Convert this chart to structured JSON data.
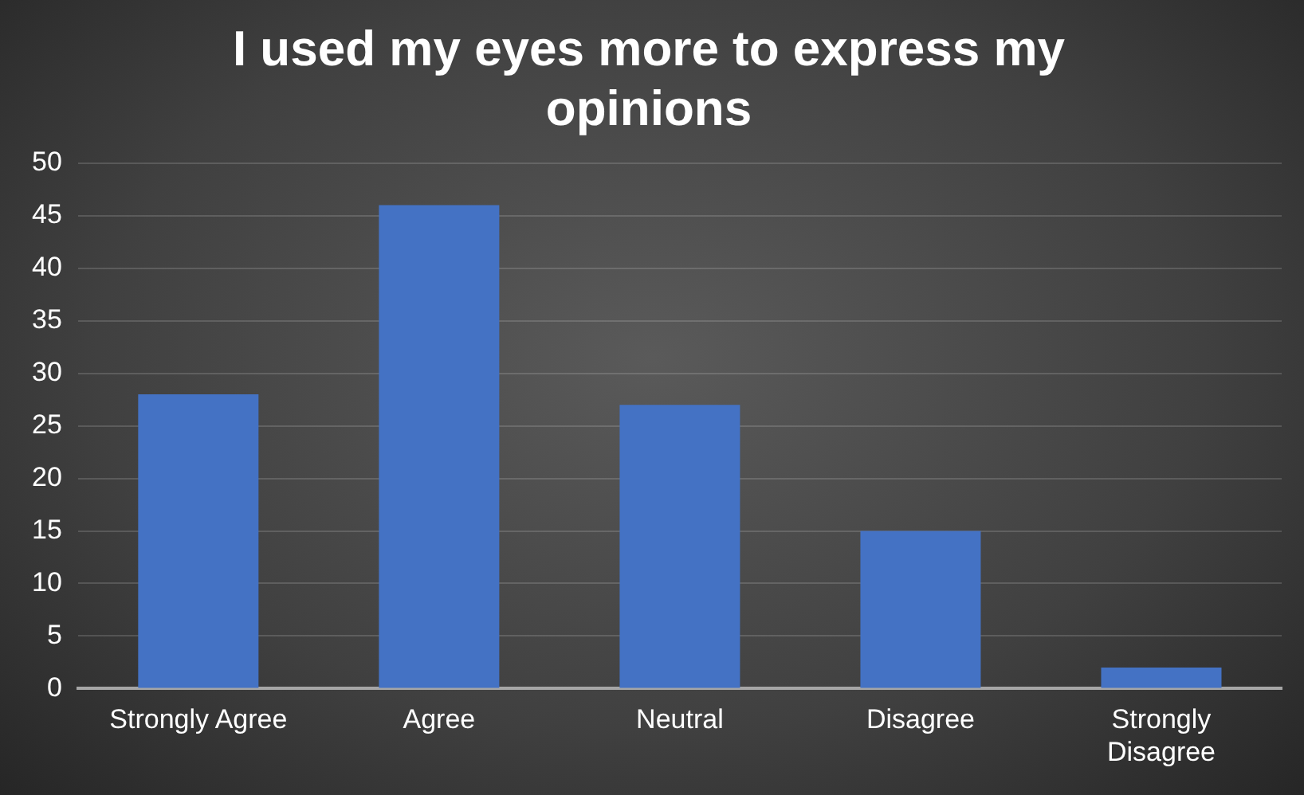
{
  "chart_data": {
    "type": "bar",
    "title": "I used my eyes more to express my opinions",
    "categories": [
      "Strongly Agree",
      "Agree",
      "Neutral",
      "Disagree",
      "Strongly Disagree"
    ],
    "values": [
      28,
      46,
      27,
      15,
      2
    ],
    "color": "#4472c4",
    "ylim": [
      0,
      50
    ],
    "yticks": [
      0,
      5,
      10,
      15,
      20,
      25,
      30,
      35,
      40,
      45,
      50
    ],
    "grid": "y",
    "legend": false
  }
}
